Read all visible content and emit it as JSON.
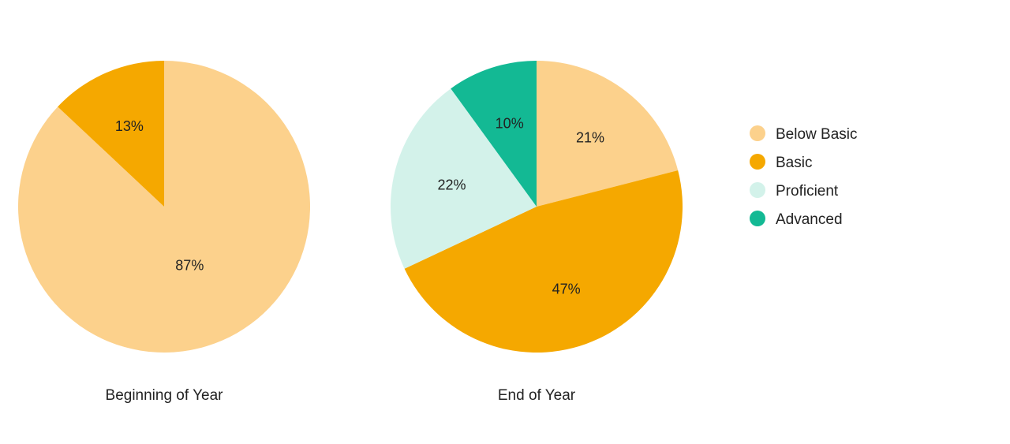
{
  "chart_data": {
    "type": "pie",
    "categories": [
      "Below Basic",
      "Basic",
      "Proficient",
      "Advanced"
    ],
    "colors": {
      "Below Basic": "#FCD18C",
      "Basic": "#F5A800",
      "Proficient": "#D3F2EA",
      "Advanced": "#13B994"
    },
    "legend": {
      "position": "right",
      "entries": [
        "Below Basic",
        "Basic",
        "Proficient",
        "Advanced"
      ]
    },
    "pies": [
      {
        "title": "Beginning of Year",
        "slices": [
          {
            "category": "Below Basic",
            "value": 87,
            "label": "87%"
          },
          {
            "category": "Basic",
            "value": 13,
            "label": "13%"
          }
        ]
      },
      {
        "title": "End of Year",
        "slices": [
          {
            "category": "Below Basic",
            "value": 21,
            "label": "21%"
          },
          {
            "category": "Basic",
            "value": 47,
            "label": "47%"
          },
          {
            "category": "Proficient",
            "value": 22,
            "label": "22%"
          },
          {
            "category": "Advanced",
            "value": 10,
            "label": "10%"
          }
        ]
      }
    ]
  }
}
